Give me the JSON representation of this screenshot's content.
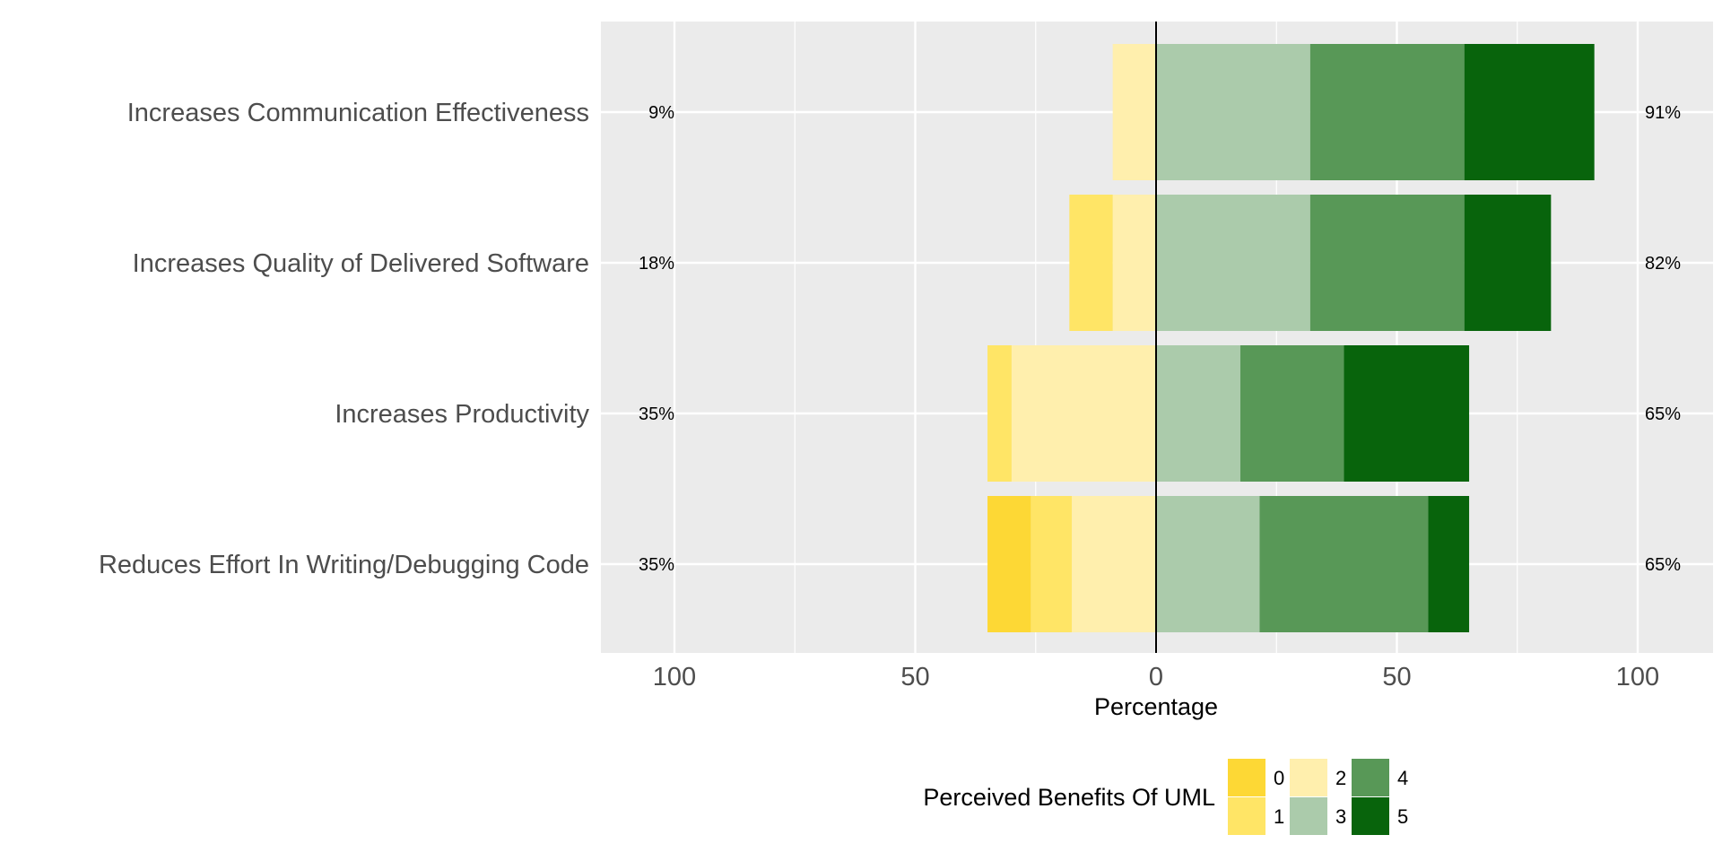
{
  "chart_data": {
    "type": "bar",
    "orientation": "horizontal-diverging",
    "categories": [
      "Increases Communication Effectiveness",
      "Increases Quality of Delivered Software",
      "Increases Productivity",
      "Reduces Effort In Writing/Debugging Code"
    ],
    "series": [
      {
        "name": "0",
        "color": "#fdd835",
        "side": "negative",
        "values": [
          0,
          0,
          0,
          9
        ]
      },
      {
        "name": "1",
        "color": "#ffe566",
        "side": "negative",
        "values": [
          0,
          9,
          5,
          8.5
        ]
      },
      {
        "name": "2",
        "color": "#ffefad",
        "side": "negative",
        "values": [
          9,
          9,
          30,
          17.5
        ]
      },
      {
        "name": "3",
        "color": "#abcbab",
        "side": "positive",
        "values": [
          32,
          32,
          17.5,
          21.5
        ]
      },
      {
        "name": "4",
        "color": "#589857",
        "side": "positive",
        "values": [
          32,
          32,
          21.5,
          35
        ]
      },
      {
        "name": "5",
        "color": "#08640c",
        "side": "positive",
        "values": [
          27,
          18,
          26,
          8.5
        ]
      }
    ],
    "left_percent_labels": [
      "9%",
      "18%",
      "35%",
      "35%"
    ],
    "right_percent_labels": [
      "91%",
      "82%",
      "65%",
      "65%"
    ],
    "xlabel": "Percentage",
    "xlim": [
      -100,
      100
    ],
    "xticks": [
      -100,
      -50,
      0,
      50,
      100
    ],
    "xtick_labels": [
      "100",
      "50",
      "0",
      "50",
      "100"
    ],
    "legend": {
      "title": "Perceived Benefits Of UML",
      "placement": "bottom",
      "items": [
        {
          "label": "0",
          "color": "#fdd835"
        },
        {
          "label": "1",
          "color": "#ffe566"
        },
        {
          "label": "2",
          "color": "#ffefad"
        },
        {
          "label": "3",
          "color": "#abcbab"
        },
        {
          "label": "4",
          "color": "#589857"
        },
        {
          "label": "5",
          "color": "#08640c"
        }
      ]
    },
    "grid": true,
    "panel_background": "#ebebeb",
    "grid_color": "#ffffff"
  }
}
